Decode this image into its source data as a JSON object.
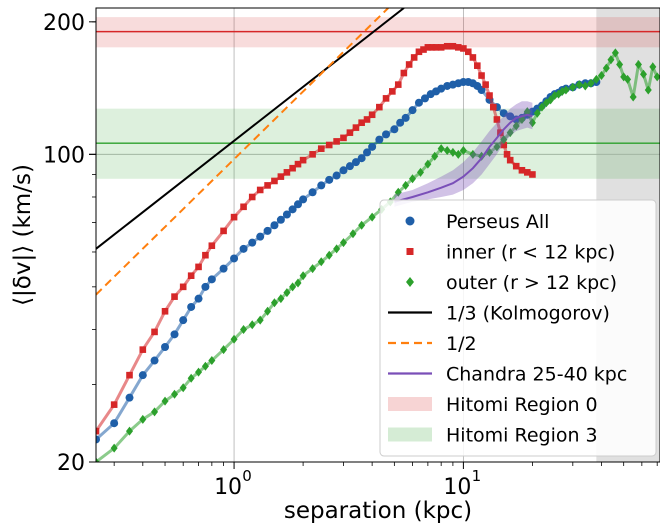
{
  "chart_data": {
    "type": "line",
    "xscale": "log",
    "yscale": "log",
    "xlabel": "separation (kpc)",
    "ylabel": "⟨|δv|⟩ (km/s)",
    "xlim": [
      0.25,
      72
    ],
    "ylim": [
      20,
      215
    ],
    "x_ticks": [
      {
        "value": 1,
        "label": "10",
        "exp": "0"
      },
      {
        "value": 10,
        "label": "10",
        "exp": "1"
      }
    ],
    "y_tick_labels": [
      {
        "value": 20,
        "label": "20"
      },
      {
        "value": 100,
        "label": "100"
      },
      {
        "value": 200,
        "label": "200"
      }
    ],
    "grid": true,
    "legend_position": "lower-right",
    "shaded_region": {
      "x_from": 38,
      "x_to": 72,
      "color": "#bbbbbb"
    },
    "bands": [
      {
        "name": "Hitomi Region 0",
        "center": 190,
        "low": 175,
        "high": 205,
        "color": "#d62728"
      },
      {
        "name": "Hitomi Region 3",
        "center": 106,
        "low": 88,
        "high": 127,
        "color": "#2ca02c"
      }
    ],
    "series": [
      {
        "name": "Perseus All",
        "color": "#1f5fa8",
        "marker": "circle",
        "x": [
          0.25,
          0.3,
          0.35,
          0.4,
          0.45,
          0.5,
          0.55,
          0.6,
          0.65,
          0.7,
          0.75,
          0.8,
          0.9,
          1.0,
          1.1,
          1.2,
          1.3,
          1.4,
          1.5,
          1.6,
          1.7,
          1.8,
          1.9,
          2.0,
          2.2,
          2.4,
          2.6,
          2.8,
          3.0,
          3.2,
          3.4,
          3.6,
          3.8,
          4.0,
          4.3,
          4.6,
          5.0,
          5.3,
          5.6,
          6.0,
          6.4,
          6.8,
          7.2,
          7.6,
          8.0,
          8.5,
          9.0,
          9.5,
          10.0,
          10.5,
          11.0,
          11.5,
          12.0,
          13.0,
          14.0,
          15.0,
          16.0,
          17.0,
          18.0,
          19.0,
          20.0,
          21.0,
          22.0,
          23.0,
          24.0,
          25.0,
          26.0,
          27.0,
          28.0,
          30.0,
          32.0,
          34.0,
          36.0,
          38.0
        ],
        "y": [
          22.5,
          24.5,
          28,
          31.5,
          34,
          36.5,
          39,
          42,
          45,
          47,
          50,
          52,
          55,
          58,
          61,
          63,
          65,
          67,
          69,
          71,
          73,
          75,
          77,
          79,
          82,
          85,
          87.5,
          89.5,
          92,
          94,
          96,
          98,
          101,
          104,
          108,
          111,
          114,
          118,
          121,
          126,
          131,
          134,
          137,
          139,
          141,
          143,
          144,
          145,
          146,
          146,
          145,
          143,
          140,
          133,
          128,
          124,
          122,
          120,
          121,
          123,
          125,
          127,
          129,
          132,
          135,
          137,
          138,
          140,
          141,
          142,
          144,
          145,
          145,
          146
        ]
      },
      {
        "name": "inner (r < 12 kpc)",
        "color": "#d62728",
        "marker": "square",
        "x": [
          0.25,
          0.3,
          0.35,
          0.4,
          0.45,
          0.5,
          0.55,
          0.6,
          0.65,
          0.7,
          0.75,
          0.8,
          0.9,
          1.0,
          1.1,
          1.2,
          1.3,
          1.4,
          1.5,
          1.6,
          1.7,
          1.8,
          1.9,
          2.0,
          2.2,
          2.4,
          2.6,
          2.8,
          3.0,
          3.2,
          3.4,
          3.6,
          3.8,
          4.0,
          4.3,
          4.6,
          4.9,
          5.2,
          5.5,
          5.8,
          6.1,
          6.4,
          6.7,
          7.0,
          7.3,
          7.6,
          8.0,
          8.5,
          9.0,
          9.5,
          10.0,
          10.5,
          11.0,
          11.5,
          12.0,
          12.5,
          13.0,
          13.5,
          14.0,
          14.5,
          15.0,
          15.5,
          16.0,
          17.0,
          18.0,
          19.0,
          20.0
        ],
        "y": [
          23.5,
          27,
          31.5,
          36,
          39.5,
          44,
          47.5,
          50,
          53,
          55.5,
          59,
          62,
          67,
          72,
          76,
          80,
          83,
          85,
          87,
          89,
          91,
          93,
          95,
          97,
          100,
          103,
          105,
          107,
          109,
          112,
          115,
          118,
          120,
          123,
          128,
          134,
          139,
          144,
          153,
          160,
          166,
          171,
          173,
          175,
          175,
          175,
          175,
          176,
          176,
          175,
          174,
          171,
          166,
          159,
          151,
          144,
          136,
          128,
          120,
          112,
          105,
          100,
          97,
          94,
          92,
          91,
          90
        ]
      },
      {
        "name": "outer (r > 12 kpc)",
        "color": "#2ca02c",
        "marker": "diamond",
        "x": [
          0.25,
          0.3,
          0.35,
          0.4,
          0.45,
          0.5,
          0.55,
          0.6,
          0.65,
          0.7,
          0.75,
          0.8,
          0.9,
          1.0,
          1.1,
          1.2,
          1.3,
          1.4,
          1.5,
          1.6,
          1.7,
          1.8,
          1.9,
          2.0,
          2.2,
          2.4,
          2.6,
          2.8,
          3.0,
          3.3,
          3.6,
          4.0,
          4.4,
          4.8,
          5.2,
          5.6,
          6.0,
          6.5,
          7.0,
          7.5,
          8.0,
          8.5,
          9.0,
          9.5,
          10.0,
          11.0,
          12.0,
          13.0,
          14.0,
          15.0,
          16.0,
          17.0,
          18.0,
          19.0,
          20.0,
          21.0,
          22.0,
          23.0,
          24.0,
          25.0,
          26.0,
          27.0,
          28.0,
          30.0,
          32.0,
          34.0,
          36.0,
          38.0,
          40.0,
          42.0,
          44.0,
          46.0,
          48.0,
          50.0,
          52.0,
          55.0,
          58.0,
          61.0,
          64.0,
          67.0,
          70.0
        ],
        "y": [
          20,
          21.5,
          23.5,
          25,
          26,
          27.5,
          28.5,
          29.5,
          31,
          32,
          33,
          34,
          36,
          38,
          40,
          41,
          42,
          44,
          46,
          47,
          48.5,
          50,
          51,
          53,
          55,
          57,
          59,
          61,
          63,
          66,
          69,
          72,
          75,
          78,
          82,
          85,
          88,
          91,
          95,
          99,
          103,
          102,
          101,
          100,
          102,
          100,
          99,
          101,
          104,
          108,
          112,
          116,
          120,
          125,
          118,
          124,
          128,
          131,
          133,
          136,
          137,
          139,
          140,
          142,
          144,
          143,
          145,
          148,
          151,
          157,
          164,
          170,
          160,
          150,
          148,
          135,
          160,
          152,
          140,
          158,
          150
        ]
      },
      {
        "name": "1/3 (Kolmogorov)",
        "color": "#000000",
        "dash": "none",
        "x": [
          0.25,
          5.5
        ],
        "y": [
          61,
          215
        ]
      },
      {
        "name": "1/2",
        "color": "#ff7f0e",
        "dash": "dashed",
        "x": [
          0.25,
          4.7
        ],
        "y": [
          48,
          215
        ]
      },
      {
        "name": "Chandra 25-40 kpc",
        "color": "#7a4fb8",
        "dash": "none",
        "x": [
          5,
          6,
          7,
          8,
          9,
          10,
          11,
          12,
          13,
          14,
          15,
          16,
          17,
          18,
          19,
          20
        ],
        "y": [
          78,
          80,
          82,
          84,
          86,
          89,
          93,
          98,
          104,
          109,
          114,
          118,
          121,
          122,
          123,
          122
        ],
        "band_low": [
          76,
          78,
          79,
          80,
          81,
          83,
          86,
          90,
          95,
          100,
          106,
          110,
          113,
          114,
          115,
          114
        ],
        "band_high": [
          81,
          83,
          86,
          89,
          92,
          96,
          101,
          107,
          113,
          118,
          122,
          127,
          130,
          132,
          132,
          131
        ]
      }
    ],
    "legend_entries": [
      {
        "label": "Perseus All",
        "kind": "marker",
        "marker": "circle",
        "color": "#1f5fa8"
      },
      {
        "label": "inner (r < 12 kpc)",
        "kind": "marker",
        "marker": "square",
        "color": "#d62728"
      },
      {
        "label": "outer (r > 12 kpc)",
        "kind": "marker",
        "marker": "diamond",
        "color": "#2ca02c"
      },
      {
        "label": "1/3 (Kolmogorov)",
        "kind": "line",
        "color": "#000000",
        "dash": "none"
      },
      {
        "label": "1/2",
        "kind": "line",
        "color": "#ff7f0e",
        "dash": "dashed"
      },
      {
        "label": "Chandra 25-40 kpc",
        "kind": "line",
        "color": "#7a4fb8",
        "dash": "none"
      },
      {
        "label": "Hitomi Region 0",
        "kind": "patch",
        "color": "#d62728"
      },
      {
        "label": "Hitomi Region 3",
        "kind": "patch",
        "color": "#2ca02c"
      }
    ]
  }
}
